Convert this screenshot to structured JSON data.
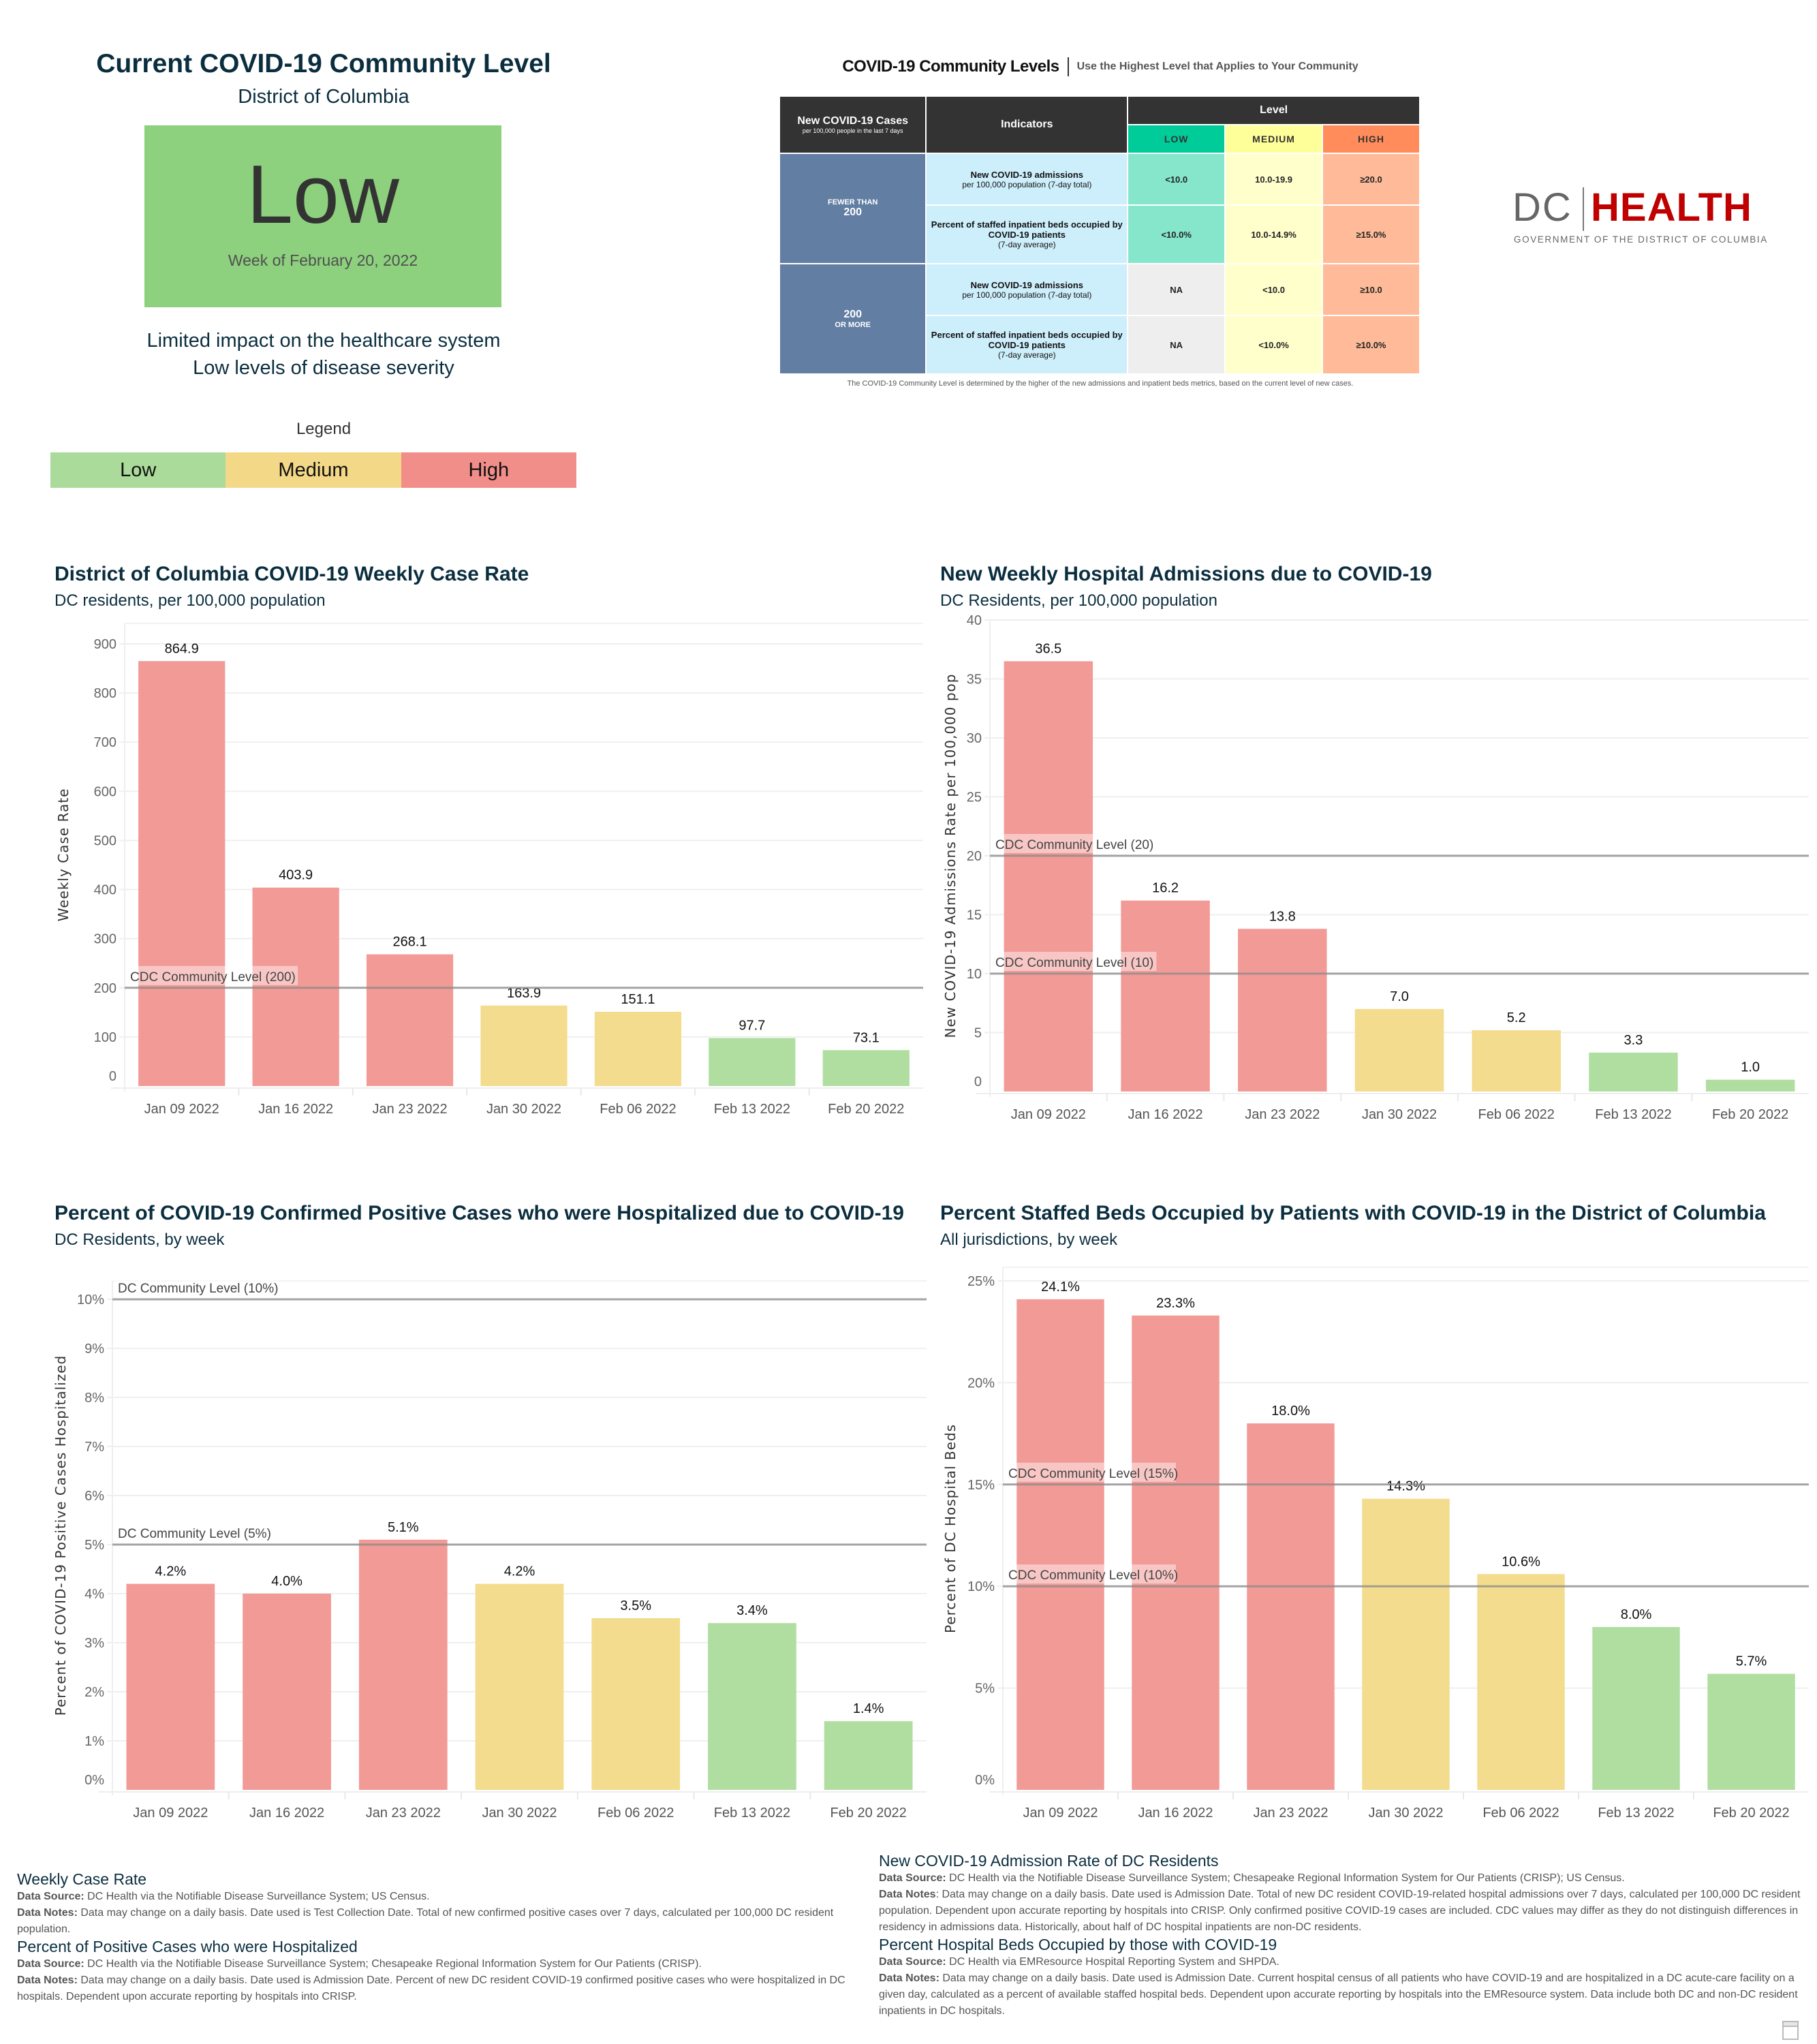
{
  "level_panel": {
    "title": "Current COVID-19 Community Level",
    "subtitle": "District of Columbia",
    "level": "Low",
    "level_color": "#8dd17e",
    "week": "Week of February 20, 2022",
    "description": [
      "Limited impact on the healthcare system",
      "Low levels of disease severity"
    ],
    "legend_title": "Legend",
    "legend": [
      {
        "label": "Low",
        "color": "#aadb9a"
      },
      {
        "label": "Medium",
        "color": "#f3d887"
      },
      {
        "label": "High",
        "color": "#f28e8a"
      }
    ]
  },
  "cdc_table": {
    "title": "COVID-19 Community Levels",
    "tagline": "Use the Highest Level that Applies to Your Community",
    "header": {
      "cases_title": "New COVID-19 Cases",
      "cases_sub": "per 100,000 people in the last 7 days",
      "indicators": "Indicators",
      "level": "Level",
      "levels": [
        {
          "label": "LOW",
          "color": "#00cc99",
          "cell_color": "#85e6cc"
        },
        {
          "label": "MEDIUM",
          "color": "#ffff99",
          "cell_color": "#ffffcc"
        },
        {
          "label": "HIGH",
          "color": "#ff8c5a",
          "cell_color": "#ffbb99"
        }
      ]
    },
    "groups": [
      {
        "cases_small": "FEWER THAN",
        "cases_big": "200",
        "rows": [
          {
            "indicator_bold": "New COVID-19 admissions",
            "indicator_sub": "per 100,000 population (7-day total)",
            "values": [
              "<10.0",
              "10.0-19.9",
              "≥20.0"
            ]
          },
          {
            "indicator_bold": "Percent of staffed inpatient beds occupied by COVID-19 patients",
            "indicator_sub": "(7-day average)",
            "values": [
              "<10.0%",
              "10.0-14.9%",
              "≥15.0%"
            ]
          }
        ]
      },
      {
        "cases_small": "OR MORE",
        "cases_big": "200",
        "rows": [
          {
            "indicator_bold": "New COVID-19 admissions",
            "indicator_sub": "per 100,000 population (7-day total)",
            "values": [
              "NA",
              "<10.0",
              "≥10.0"
            ]
          },
          {
            "indicator_bold": "Percent of staffed inpatient beds occupied by COVID-19 patients",
            "indicator_sub": "(7-day average)",
            "values": [
              "NA",
              "<10.0%",
              "≥10.0%"
            ]
          }
        ]
      }
    ],
    "na_color": "#eeeeee",
    "footnote": "The COVID-19 Community Level is determined by the higher of the new admissions and inpatient beds metrics, based on the current level of new cases."
  },
  "logo": {
    "left": "DC",
    "right": "HEALTH",
    "tagline": "GOVERNMENT OF THE DISTRICT OF COLUMBIA"
  },
  "colors": {
    "high": "#f29a96",
    "medium": "#f3dc8e",
    "low": "#b0dea1",
    "reference_line": "#9a9a9a",
    "title": "#0b2e3f"
  },
  "chart_data": [
    {
      "id": "case-rate",
      "type": "bar",
      "title": "District of Columbia COVID-19 Weekly Case Rate",
      "subtitle": "DC residents, per 100,000 population",
      "xlabel": "",
      "ylabel": "Weekly Case Rate",
      "categories": [
        "Jan 09 2022",
        "Jan 16 2022",
        "Jan 23 2022",
        "Jan 30 2022",
        "Feb 06 2022",
        "Feb 13 2022",
        "Feb 20 2022"
      ],
      "values": [
        864.9,
        403.9,
        268.1,
        163.9,
        151.1,
        97.7,
        73.1
      ],
      "value_labels": [
        "864.9",
        "403.9",
        "268.1",
        "163.9",
        "151.1",
        "97.7",
        "73.1"
      ],
      "levels": [
        "high",
        "high",
        "high",
        "medium",
        "medium",
        "low",
        "low"
      ],
      "ylim": [
        0,
        900
      ],
      "yticks": [
        0,
        100,
        200,
        300,
        400,
        500,
        600,
        700,
        800,
        900
      ],
      "ytick_labels": [
        "0",
        "100",
        "200",
        "300",
        "400",
        "500",
        "600",
        "700",
        "800",
        "900"
      ],
      "reference_lines": [
        {
          "value": 200,
          "label": "CDC Community Level (200)"
        }
      ],
      "grid": true,
      "legend": "none"
    },
    {
      "id": "admissions",
      "type": "bar",
      "title": "New Weekly Hospital Admissions due to COVID-19",
      "subtitle": "DC Residents, per 100,000 population",
      "xlabel": "",
      "ylabel": "New COVID-19 Admissions Rate per 100,000 pop",
      "categories": [
        "Jan 09 2022",
        "Jan 16 2022",
        "Jan 23 2022",
        "Jan 30 2022",
        "Feb 06 2022",
        "Feb 13 2022",
        "Feb 20 2022"
      ],
      "values": [
        36.5,
        16.2,
        13.8,
        7.0,
        5.2,
        3.3,
        1.0
      ],
      "value_labels": [
        "36.5",
        "16.2",
        "13.8",
        "7.0",
        "5.2",
        "3.3",
        "1.0"
      ],
      "levels": [
        "high",
        "high",
        "high",
        "medium",
        "medium",
        "low",
        "low"
      ],
      "ylim": [
        0,
        40
      ],
      "yticks": [
        0,
        5,
        10,
        15,
        20,
        25,
        30,
        35,
        40
      ],
      "ytick_labels": [
        "0",
        "5",
        "10",
        "15",
        "20",
        "25",
        "30",
        "35",
        "40"
      ],
      "reference_lines": [
        {
          "value": 20,
          "label": "CDC Community Level (20)"
        },
        {
          "value": 10,
          "label": "CDC Community Level (10)"
        }
      ],
      "grid": true,
      "legend": "none"
    },
    {
      "id": "pct-hospitalized",
      "type": "bar",
      "title": "Percent of COVID-19 Confirmed Positive Cases who were Hospitalized due to COVID-19",
      "subtitle": "DC Residents, by week",
      "xlabel": "",
      "ylabel": "Percent of COVID-19 Positive Cases Hospitalized",
      "categories": [
        "Jan 09 2022",
        "Jan 16 2022",
        "Jan 23 2022",
        "Jan 30 2022",
        "Feb 06 2022",
        "Feb 13 2022",
        "Feb 20 2022"
      ],
      "values": [
        4.2,
        4.0,
        5.1,
        4.2,
        3.5,
        3.4,
        1.4
      ],
      "value_labels": [
        "4.2%",
        "4.0%",
        "5.1%",
        "4.2%",
        "3.5%",
        "3.4%",
        "1.4%"
      ],
      "levels": [
        "high",
        "high",
        "high",
        "medium",
        "medium",
        "low",
        "low"
      ],
      "ylim": [
        0,
        10
      ],
      "yticks": [
        0,
        1,
        2,
        3,
        4,
        5,
        6,
        7,
        8,
        9,
        10
      ],
      "ytick_labels": [
        "0%",
        "1%",
        "2%",
        "3%",
        "4%",
        "5%",
        "6%",
        "7%",
        "8%",
        "9%",
        "10%"
      ],
      "reference_lines": [
        {
          "value": 10,
          "label": "DC Community Level (10%)"
        },
        {
          "value": 5,
          "label": "DC Community Level (5%)"
        }
      ],
      "grid": true,
      "legend": "none"
    },
    {
      "id": "pct-beds",
      "type": "bar",
      "title": "Percent Staffed Beds Occupied by Patients with COVID-19 in the District of Columbia",
      "subtitle": "All jurisdictions, by week",
      "xlabel": "",
      "ylabel": "Percent of DC Hospital Beds",
      "categories": [
        "Jan 09 2022",
        "Jan 16 2022",
        "Jan 23 2022",
        "Jan 30 2022",
        "Feb 06 2022",
        "Feb 13 2022",
        "Feb 20 2022"
      ],
      "values": [
        24.1,
        23.3,
        18.0,
        14.3,
        10.6,
        8.0,
        5.7
      ],
      "value_labels": [
        "24.1%",
        "23.3%",
        "18.0%",
        "14.3%",
        "10.6%",
        "8.0%",
        "5.7%"
      ],
      "levels": [
        "high",
        "high",
        "high",
        "medium",
        "medium",
        "low",
        "low"
      ],
      "ylim": [
        0,
        25
      ],
      "yticks": [
        0,
        5,
        10,
        15,
        20,
        25
      ],
      "ytick_labels": [
        "0%",
        "5%",
        "10%",
        "15%",
        "20%",
        "25%"
      ],
      "reference_lines": [
        {
          "value": 15,
          "label": "CDC Community Level (15%)"
        },
        {
          "value": 10,
          "label": "CDC Community Level (10%)"
        }
      ],
      "grid": true,
      "legend": "none"
    }
  ],
  "footnotes": {
    "left": [
      {
        "title": "Weekly Case Rate",
        "source_label": "Data Source:",
        "source": " DC Health via the Notifiable Disease Surveillance System; US Census.",
        "notes_label": "Data Notes:",
        "notes": " Data may change on a daily basis. Date used is Test Collection Date. Total of new confirmed positive cases over 7 days, calculated per 100,000 DC resident population."
      },
      {
        "title": "Percent of Positive Cases who were Hospitalized",
        "source_label": "Data Source:",
        "source": " DC Health via the Notifiable Disease Surveillance System; Chesapeake Regional Information System for Our Patients (CRISP).",
        "notes_label": "Data Notes:",
        "notes": " Data may change on a daily basis. Date used is Admission Date. Percent of new DC resident COVID-19 confirmed positive cases who were hospitalized in DC hospitals. Dependent upon accurate reporting by hospitals into CRISP."
      }
    ],
    "right": [
      {
        "title": "New COVID-19 Admission Rate of DC Residents",
        "source_label": "Data Source:",
        "source": " DC Health via the Notifiable Disease Surveillance System; Chesapeake Regional Information System for Our Patients (CRISP); US Census.",
        "notes_label": "Data Notes",
        "notes": ": Data may change on a daily basis. Date used is Admission Date. Total of new DC resident COVID-19-related hospital admissions over 7 days, calculated per 100,000 DC resident population. Dependent upon accurate reporting by hospitals into CRISP. Only confirmed positive COVID-19 cases are included. CDC values may differ as they do not distinguish differences in residency in admissions data. Historically, about half of DC hospital  inpatients are non-DC residents."
      },
      {
        "title": "Percent Hospital Beds Occupied by those with COVID-19",
        "source_label": "Data Source:",
        "source": " DC Health via EMResource Hospital Reporting System and SHPDA.",
        "notes_label": "Data Notes:",
        "notes": " Data may change on a daily basis. Date used is Admission Date. Current hospital census of all patients who have COVID-19 and are hospitalized in a DC acute-care facility on a given day, calculated as a percent of available staffed hospital beds. Dependent upon accurate reporting by hospitals into the EMResource system. Data include both DC and non-DC resident inpatients in DC hospitals."
      }
    ]
  }
}
